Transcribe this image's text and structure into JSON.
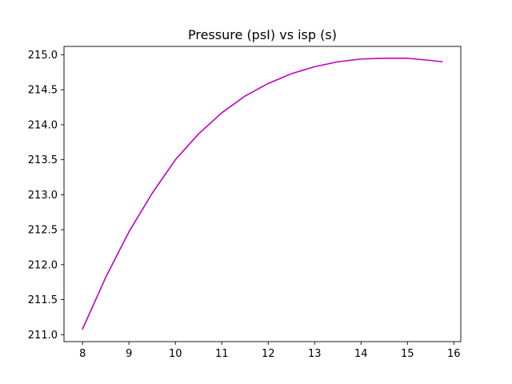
{
  "chart_data": {
    "type": "line",
    "title": "Pressure  (psI) vs isp (s)",
    "xlabel": "",
    "ylabel": "",
    "xlim": [
      7.6,
      16.15
    ],
    "ylim": [
      210.9,
      215.12
    ],
    "x_ticks": [
      8,
      9,
      10,
      11,
      12,
      13,
      14,
      15,
      16
    ],
    "x_tick_labels": [
      "8",
      "9",
      "10",
      "11",
      "12",
      "13",
      "14",
      "15",
      "16"
    ],
    "y_ticks": [
      211.0,
      211.5,
      212.0,
      212.5,
      213.0,
      213.5,
      214.0,
      214.5,
      215.0
    ],
    "y_tick_labels": [
      "211.0",
      "211.5",
      "212.0",
      "212.5",
      "213.0",
      "213.5",
      "214.0",
      "214.5",
      "215.0"
    ],
    "grid": false,
    "series": [
      {
        "color": "#bf00bf",
        "x": [
          8.0,
          8.5,
          9.0,
          9.5,
          10.0,
          10.5,
          11.0,
          11.5,
          12.0,
          12.5,
          13.0,
          13.5,
          14.0,
          14.5,
          15.0,
          15.5,
          15.75
        ],
        "y": [
          211.08,
          211.82,
          212.47,
          213.02,
          213.5,
          213.87,
          214.17,
          214.41,
          214.59,
          214.73,
          214.83,
          214.9,
          214.94,
          214.95,
          214.95,
          214.92,
          214.9
        ]
      }
    ]
  }
}
